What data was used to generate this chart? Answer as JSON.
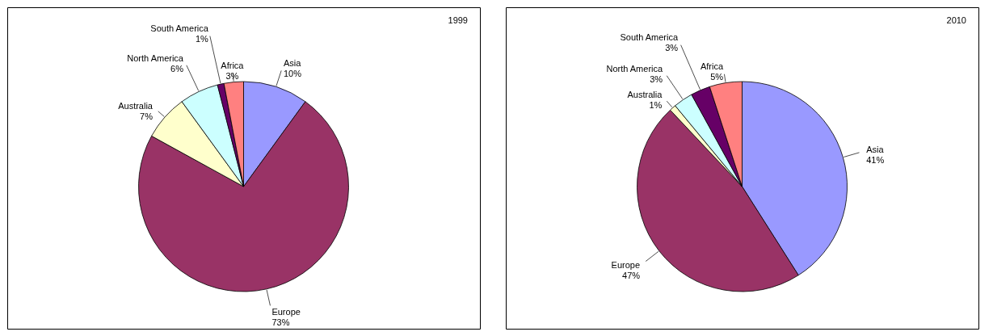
{
  "chart_data": [
    {
      "type": "pie",
      "title": "1999",
      "categories": [
        "Asia",
        "Europe",
        "Australia",
        "North America",
        "South America",
        "Africa"
      ],
      "values": [
        10,
        73,
        7,
        6,
        1,
        3
      ],
      "value_labels": [
        "10%",
        "73%",
        "7%",
        "6%",
        "1%",
        "3%"
      ],
      "colors": [
        "#9999ff",
        "#993366",
        "#ffffcc",
        "#ccffff",
        "#660066",
        "#ff8080"
      ],
      "legend": false
    },
    {
      "type": "pie",
      "title": "2010",
      "categories": [
        "Asia",
        "Europe",
        "Australia",
        "North America",
        "South America",
        "Africa"
      ],
      "values": [
        41,
        47,
        1,
        3,
        3,
        5
      ],
      "value_labels": [
        "41%",
        "47%",
        "1%",
        "3%",
        "3%",
        "5%"
      ],
      "colors": [
        "#9999ff",
        "#993366",
        "#ffffcc",
        "#ccffff",
        "#660066",
        "#ff8080"
      ],
      "legend": false
    }
  ]
}
